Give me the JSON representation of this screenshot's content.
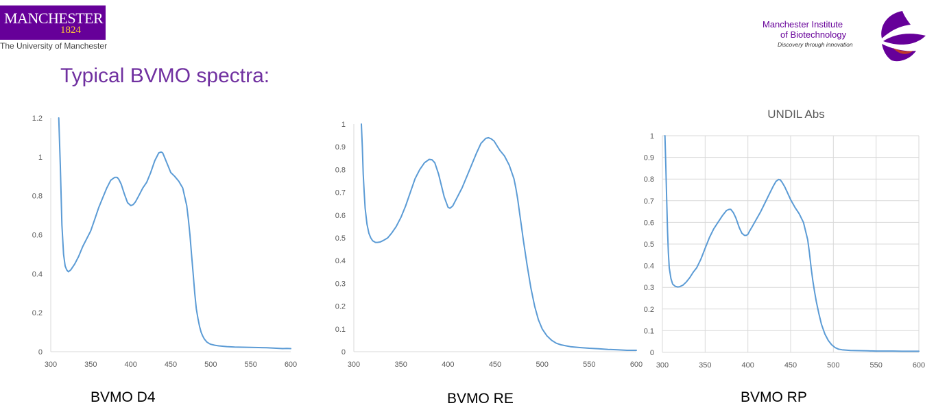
{
  "header": {
    "uni_name": "MANCHESTER",
    "uni_year": "1824",
    "uni_sub": "The University of Manchester",
    "institute_line1": "Manchester Institute",
    "institute_line2": "of Biotechnology",
    "institute_tagline": "Discovery through innovation"
  },
  "slide_title": "Typical BVMO spectra:",
  "colors": {
    "series": "#5b9bd5",
    "title": "#7030a0",
    "brand": "#660099",
    "brand_accent": "#ffcc33",
    "grid": "#d9d9d9",
    "axis_text": "#595959"
  },
  "chart_data": [
    {
      "type": "line",
      "title": "",
      "caption": "BVMO D4",
      "xlim": [
        300,
        600
      ],
      "ylim": [
        0,
        1.2
      ],
      "xticks": [
        "300",
        "350",
        "400",
        "450",
        "500",
        "550",
        "600"
      ],
      "yticks": [
        "0",
        "0.2",
        "0.4",
        "0.6",
        "0.8",
        "1",
        "1.2"
      ],
      "grid": false,
      "series": [
        {
          "x": [
            310,
            312,
            314,
            316,
            318,
            320,
            322,
            325,
            330,
            335,
            340,
            345,
            350,
            355,
            360,
            365,
            370,
            375,
            380,
            383,
            385,
            388,
            392,
            396,
            400,
            403,
            406,
            410,
            415,
            420,
            425,
            430,
            435,
            438,
            440,
            442,
            445,
            448,
            450,
            455,
            460,
            465,
            470,
            472,
            474,
            476,
            478,
            480,
            482,
            484,
            486,
            488,
            490,
            492,
            495,
            498,
            500,
            505,
            510,
            520,
            530,
            550,
            570,
            580,
            590,
            595,
            600
          ],
          "y": [
            1.2,
            0.95,
            0.65,
            0.5,
            0.44,
            0.42,
            0.41,
            0.42,
            0.45,
            0.49,
            0.54,
            0.58,
            0.62,
            0.68,
            0.74,
            0.79,
            0.84,
            0.88,
            0.895,
            0.895,
            0.885,
            0.86,
            0.81,
            0.765,
            0.75,
            0.755,
            0.77,
            0.8,
            0.84,
            0.87,
            0.92,
            0.98,
            1.02,
            1.025,
            1.02,
            1.0,
            0.97,
            0.94,
            0.92,
            0.9,
            0.875,
            0.84,
            0.75,
            0.68,
            0.6,
            0.5,
            0.4,
            0.3,
            0.22,
            0.17,
            0.13,
            0.1,
            0.08,
            0.065,
            0.05,
            0.042,
            0.038,
            0.033,
            0.03,
            0.026,
            0.024,
            0.022,
            0.02,
            0.018,
            0.016,
            0.017,
            0.016
          ]
        }
      ]
    },
    {
      "type": "line",
      "title": "",
      "caption": "BVMO RE",
      "xlim": [
        300,
        600
      ],
      "ylim": [
        0,
        1
      ],
      "xticks": [
        "300",
        "350",
        "400",
        "450",
        "500",
        "550",
        "600"
      ],
      "yticks": [
        "0",
        "0.1",
        "0.2",
        "0.3",
        "0.4",
        "0.5",
        "0.6",
        "0.7",
        "0.8",
        "0.9",
        "1"
      ],
      "grid": false,
      "series": [
        {
          "x": [
            308,
            309,
            310,
            311,
            312,
            314,
            316,
            318,
            320,
            323,
            325,
            328,
            332,
            336,
            340,
            345,
            350,
            355,
            360,
            365,
            370,
            375,
            380,
            383,
            386,
            390,
            393,
            396,
            400,
            402,
            405,
            410,
            415,
            420,
            425,
            430,
            435,
            440,
            443,
            446,
            449,
            452,
            455,
            460,
            465,
            470,
            472,
            474,
            476,
            478,
            480,
            484,
            488,
            492,
            496,
            500,
            505,
            510,
            515,
            520,
            525,
            530,
            540,
            550,
            560,
            570,
            580,
            590,
            600
          ],
          "y": [
            1.0,
            0.9,
            0.78,
            0.7,
            0.63,
            0.56,
            0.52,
            0.5,
            0.487,
            0.48,
            0.48,
            0.482,
            0.49,
            0.5,
            0.52,
            0.55,
            0.59,
            0.64,
            0.7,
            0.76,
            0.8,
            0.83,
            0.845,
            0.843,
            0.83,
            0.78,
            0.73,
            0.68,
            0.635,
            0.63,
            0.64,
            0.68,
            0.72,
            0.77,
            0.82,
            0.87,
            0.915,
            0.937,
            0.94,
            0.935,
            0.925,
            0.905,
            0.885,
            0.86,
            0.82,
            0.76,
            0.72,
            0.67,
            0.61,
            0.55,
            0.49,
            0.38,
            0.28,
            0.2,
            0.14,
            0.1,
            0.07,
            0.05,
            0.037,
            0.03,
            0.026,
            0.022,
            0.018,
            0.015,
            0.013,
            0.01,
            0.008,
            0.006,
            0.006
          ]
        }
      ]
    },
    {
      "type": "line",
      "title": "UNDIL Abs",
      "caption": "BVMO RP",
      "xlim": [
        300,
        600
      ],
      "ylim": [
        0,
        1
      ],
      "xticks": [
        "300",
        "350",
        "400",
        "450",
        "500",
        "550",
        "600"
      ],
      "yticks": [
        "0",
        "0.1",
        "0.2",
        "0.3",
        "0.4",
        "0.5",
        "0.6",
        "0.7",
        "0.8",
        "0.9",
        "1"
      ],
      "grid": true,
      "series": [
        {
          "x": [
            303,
            304,
            305,
            306,
            307,
            308,
            310,
            312,
            315,
            318,
            320,
            324,
            328,
            332,
            336,
            340,
            345,
            350,
            355,
            360,
            365,
            370,
            375,
            378,
            380,
            383,
            386,
            390,
            393,
            396,
            398,
            400,
            402,
            405,
            410,
            415,
            420,
            425,
            430,
            433,
            436,
            438,
            440,
            443,
            446,
            450,
            455,
            460,
            465,
            470,
            472,
            474,
            476,
            478,
            480,
            483,
            486,
            490,
            494,
            498,
            502,
            506,
            510,
            520,
            530,
            540,
            550,
            560,
            570,
            580,
            590,
            600
          ],
          "y": [
            1.0,
            0.86,
            0.71,
            0.56,
            0.46,
            0.39,
            0.34,
            0.315,
            0.305,
            0.302,
            0.303,
            0.31,
            0.325,
            0.345,
            0.37,
            0.39,
            0.43,
            0.48,
            0.53,
            0.57,
            0.6,
            0.63,
            0.655,
            0.66,
            0.66,
            0.645,
            0.62,
            0.575,
            0.55,
            0.54,
            0.54,
            0.545,
            0.56,
            0.58,
            0.615,
            0.65,
            0.69,
            0.73,
            0.77,
            0.79,
            0.798,
            0.796,
            0.785,
            0.765,
            0.74,
            0.705,
            0.67,
            0.64,
            0.6,
            0.52,
            0.46,
            0.39,
            0.33,
            0.28,
            0.235,
            0.18,
            0.13,
            0.085,
            0.055,
            0.035,
            0.022,
            0.015,
            0.012,
            0.009,
            0.008,
            0.007,
            0.006,
            0.006,
            0.006,
            0.005,
            0.005,
            0.005
          ]
        }
      ]
    }
  ]
}
